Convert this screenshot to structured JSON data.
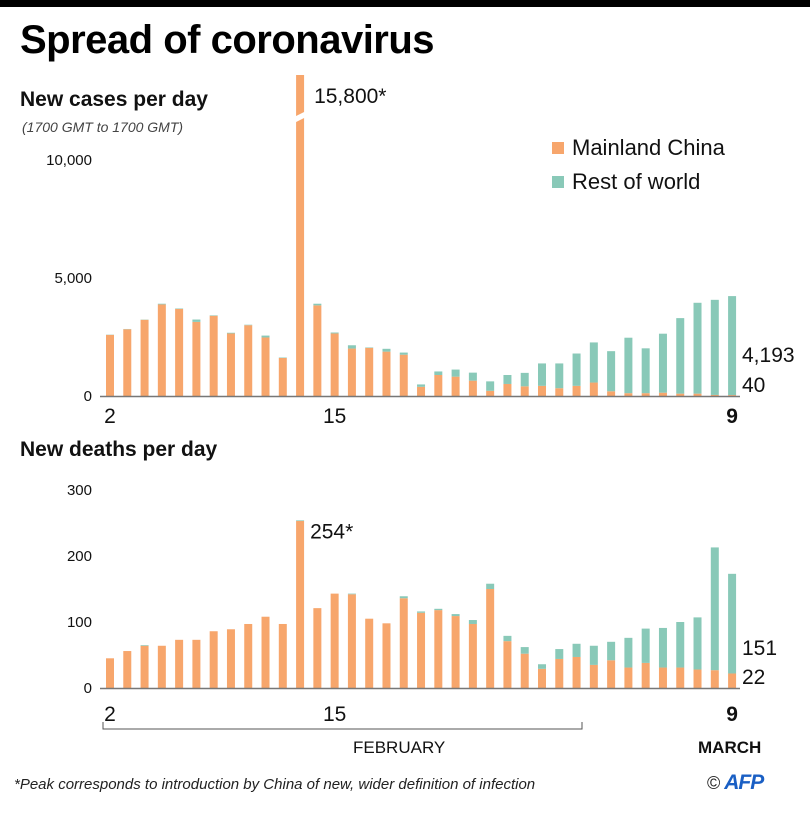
{
  "header": {
    "title": "Spread of coronavirus"
  },
  "colors": {
    "mainland_china": "#f7a66c",
    "rest_of_world": "#89c9b8",
    "axis": "#777777"
  },
  "legend": {
    "items": [
      {
        "label": "Mainland China",
        "color": "#f7a66c"
      },
      {
        "label": "Rest of world",
        "color": "#89c9b8"
      }
    ]
  },
  "months": {
    "february": "FEBRUARY",
    "march": "MARCH"
  },
  "footnote": "*Peak corresponds to introduction by China of new, wider definition of infection",
  "credit": {
    "copyright": "©",
    "logo_text": "AFP"
  },
  "chart_data": [
    {
      "type": "bar",
      "stacked": true,
      "title": "New cases per day",
      "subtitle": "(1700 GMT to 1700 GMT)",
      "xlabel": "",
      "ylabel": "",
      "ylim": [
        0,
        11500
      ],
      "yticks": [
        0,
        5000,
        10000
      ],
      "ytick_labels": [
        "0",
        "5,000",
        "10,000"
      ],
      "x_tick_labels": [
        {
          "index": 0,
          "label": "2"
        },
        {
          "index": 13,
          "label": "15"
        },
        {
          "index": 36,
          "label": "9",
          "bold": true
        }
      ],
      "categories": [
        "Feb 2",
        "Feb 3",
        "Feb 4",
        "Feb 5",
        "Feb 6",
        "Feb 7",
        "Feb 8",
        "Feb 9",
        "Feb 10",
        "Feb 11",
        "Feb 12",
        "Feb 13",
        "Feb 14",
        "Feb 15",
        "Feb 16",
        "Feb 17",
        "Feb 18",
        "Feb 19",
        "Feb 20",
        "Feb 21",
        "Feb 22",
        "Feb 23",
        "Feb 24",
        "Feb 25",
        "Feb 26",
        "Feb 27",
        "Feb 28",
        "Feb 29",
        "Mar 1",
        "Mar 2",
        "Mar 3",
        "Mar 4",
        "Mar 5",
        "Mar 6",
        "Mar 7",
        "Mar 8",
        "Mar 9"
      ],
      "series": [
        {
          "name": "Mainland China",
          "values": [
            2590,
            2830,
            3230,
            3880,
            3690,
            3140,
            3400,
            2650,
            3000,
            2480,
            1610,
            15800,
            3840,
            2650,
            2010,
            2040,
            1880,
            1750,
            390,
            890,
            820,
            650,
            220,
            510,
            410,
            430,
            330,
            430,
            570,
            200,
            120,
            120,
            140,
            100,
            100,
            45,
            40
          ]
        },
        {
          "name": "Rest of world",
          "values": [
            10,
            10,
            10,
            30,
            20,
            100,
            20,
            30,
            20,
            80,
            20,
            30,
            70,
            40,
            140,
            20,
            120,
            90,
            100,
            150,
            300,
            340,
            400,
            380,
            570,
            950,
            1050,
            1370,
            1700,
            1700,
            2350,
            1900,
            2500,
            3200,
            3850,
            4030,
            4193
          ]
        }
      ],
      "break": {
        "index": 11,
        "label": "15,800*"
      },
      "end_labels": [
        {
          "series": "Rest of world",
          "label": "4,193"
        },
        {
          "series": "Mainland China",
          "label": "40"
        }
      ]
    },
    {
      "type": "bar",
      "stacked": true,
      "title": "New deaths per day",
      "xlabel": "",
      "ylabel": "",
      "ylim": [
        0,
        300
      ],
      "yticks": [
        0,
        100,
        200,
        300
      ],
      "ytick_labels": [
        "0",
        "100",
        "200",
        "300"
      ],
      "x_tick_labels": [
        {
          "index": 0,
          "label": "2"
        },
        {
          "index": 13,
          "label": "15"
        },
        {
          "index": 36,
          "label": "9",
          "bold": true
        }
      ],
      "categories": [
        "Feb 2",
        "Feb 3",
        "Feb 4",
        "Feb 5",
        "Feb 6",
        "Feb 7",
        "Feb 8",
        "Feb 9",
        "Feb 10",
        "Feb 11",
        "Feb 12",
        "Feb 13",
        "Feb 14",
        "Feb 15",
        "Feb 16",
        "Feb 17",
        "Feb 18",
        "Feb 19",
        "Feb 20",
        "Feb 21",
        "Feb 22",
        "Feb 23",
        "Feb 24",
        "Feb 25",
        "Feb 26",
        "Feb 27",
        "Feb 28",
        "Feb 29",
        "Mar 1",
        "Mar 2",
        "Mar 3",
        "Mar 4",
        "Mar 5",
        "Mar 6",
        "Mar 7",
        "Mar 8",
        "Mar 9"
      ],
      "series": [
        {
          "name": "Mainland China",
          "values": [
            45,
            56,
            64,
            64,
            73,
            73,
            86,
            89,
            97,
            108,
            97,
            253,
            121,
            143,
            142,
            105,
            98,
            136,
            114,
            118,
            109,
            97,
            150,
            71,
            52,
            29,
            44,
            47,
            35,
            42,
            31,
            38,
            31,
            31,
            28,
            27,
            22
          ]
        },
        {
          "name": "Rest of world",
          "values": [
            0,
            0,
            1,
            0,
            0,
            0,
            0,
            0,
            0,
            0,
            0,
            1,
            0,
            0,
            1,
            0,
            0,
            3,
            2,
            2,
            3,
            6,
            8,
            8,
            10,
            7,
            15,
            20,
            29,
            28,
            45,
            52,
            60,
            69,
            79,
            186,
            151
          ]
        }
      ],
      "annotation": {
        "index": 11,
        "label": "254*"
      },
      "end_labels": [
        {
          "series": "Rest of world",
          "label": "151"
        },
        {
          "series": "Mainland China",
          "label": "22"
        }
      ]
    }
  ]
}
